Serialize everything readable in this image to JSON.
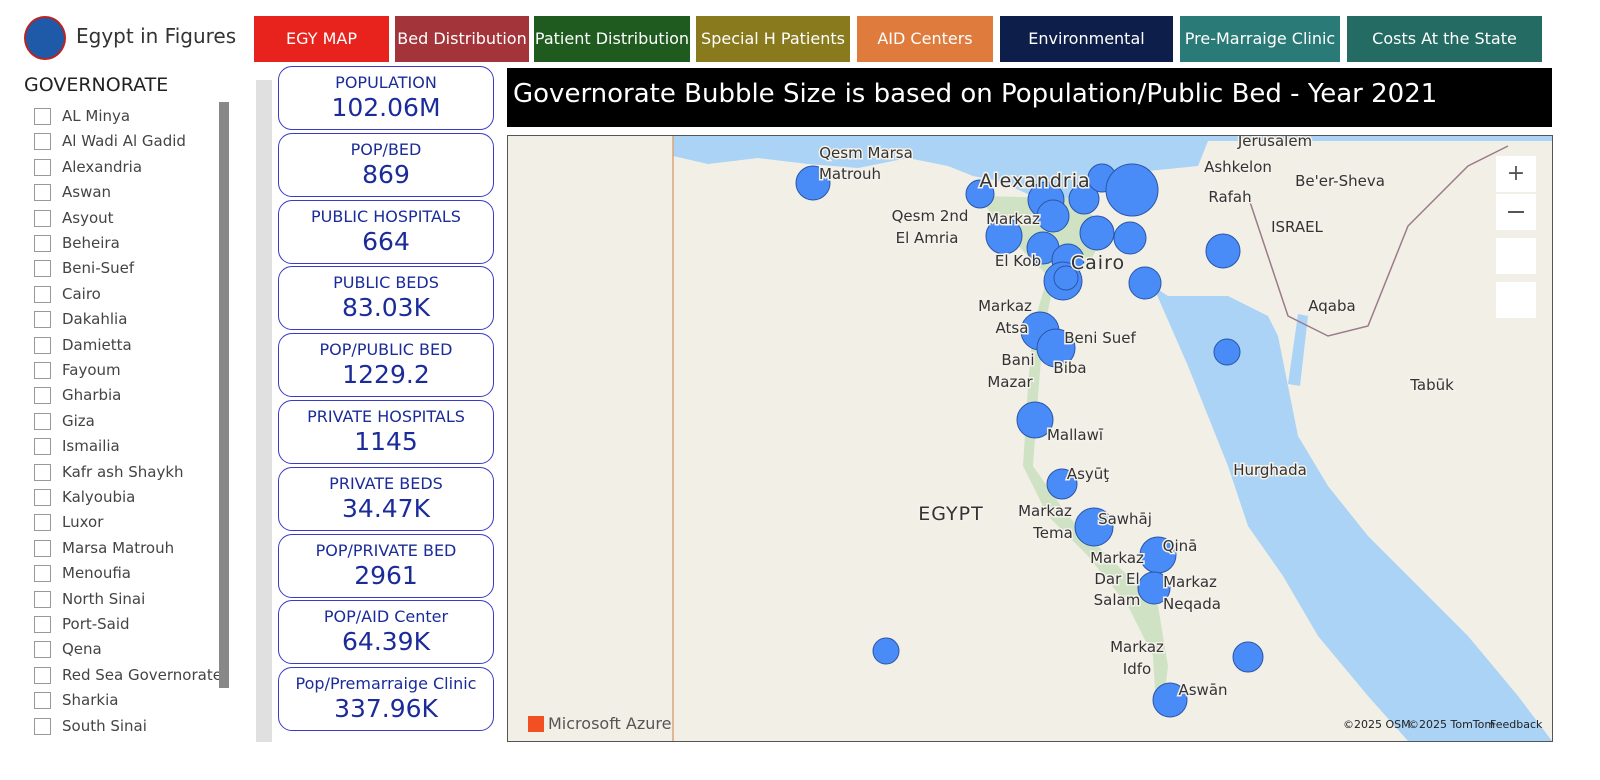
{
  "header": {
    "title": "Egypt in Figures"
  },
  "nav": [
    "EGY MAP",
    "Bed Distribution",
    "Patient Distribution",
    "Special H Patients",
    "AID Centers",
    "Environmental Health",
    "Pre-Marraige Clinic",
    "Costs At the State"
  ],
  "filter": {
    "title": "GOVERNORATE",
    "items": [
      "AL Minya",
      "Al Wadi Al Gadid",
      "Alexandria",
      "Aswan",
      "Asyout",
      "Beheira",
      "Beni-Suef",
      "Cairo",
      "Dakahlia",
      "Damietta",
      "Fayoum",
      "Gharbia",
      "Giza",
      "Ismailia",
      "Kafr ash Shaykh",
      "Kalyoubia",
      "Luxor",
      "Marsa Matrouh",
      "Menoufia",
      "North Sinai",
      "Port-Said",
      "Qena",
      "Red Sea Governorate",
      "Sharkia",
      "South Sinai"
    ]
  },
  "kpis": [
    {
      "label": "POPULATION",
      "value": "102.06M"
    },
    {
      "label": "POP/BED",
      "value": "869"
    },
    {
      "label": "PUBLIC HOSPITALS",
      "value": "664"
    },
    {
      "label": "PUBLIC BEDS",
      "value": "83.03K"
    },
    {
      "label": "POP/PUBLIC BED",
      "value": "1229.2"
    },
    {
      "label": "PRIVATE HOSPITALS",
      "value": "1145"
    },
    {
      "label": "PRIVATE BEDS",
      "value": "34.47K"
    },
    {
      "label": "POP/PRIVATE BED",
      "value": "2961"
    },
    {
      "label": "POP/AID Center",
      "value": "64.39K"
    },
    {
      "label": "Pop/Premarraige Clinic",
      "value": "337.96K"
    }
  ],
  "map": {
    "title": "Governorate Bubble Size is based on Population/Public Bed - Year 2021",
    "labels": [
      "Jerusalem",
      "Ashkelon",
      "Be'er-Sheva",
      "Rafah",
      "ISRAEL",
      "Qesm Marsa",
      "Matrouh",
      "Alexandria",
      "Qesm 2nd",
      "El Amria",
      "Markaz",
      "El Kob",
      "Cairo",
      "Markaz",
      "Atsa",
      "Beni Suef",
      "Bani",
      "Mazar",
      "Biba",
      "Aqaba",
      "Tabūk",
      "Mallawī",
      "Asyūţ",
      "Hurghada",
      "EGYPT",
      "Markaz",
      "Tema",
      "Sawhāj",
      "Markaz",
      "Qinā",
      "Dar El",
      "Salam",
      "Markaz",
      "Neqada",
      "Markaz",
      "Idfo",
      "Aswān"
    ],
    "attribution": [
      "Microsoft Azure",
      "©2025 OSM",
      "©2025 TomTom",
      "Feedback"
    ]
  }
}
